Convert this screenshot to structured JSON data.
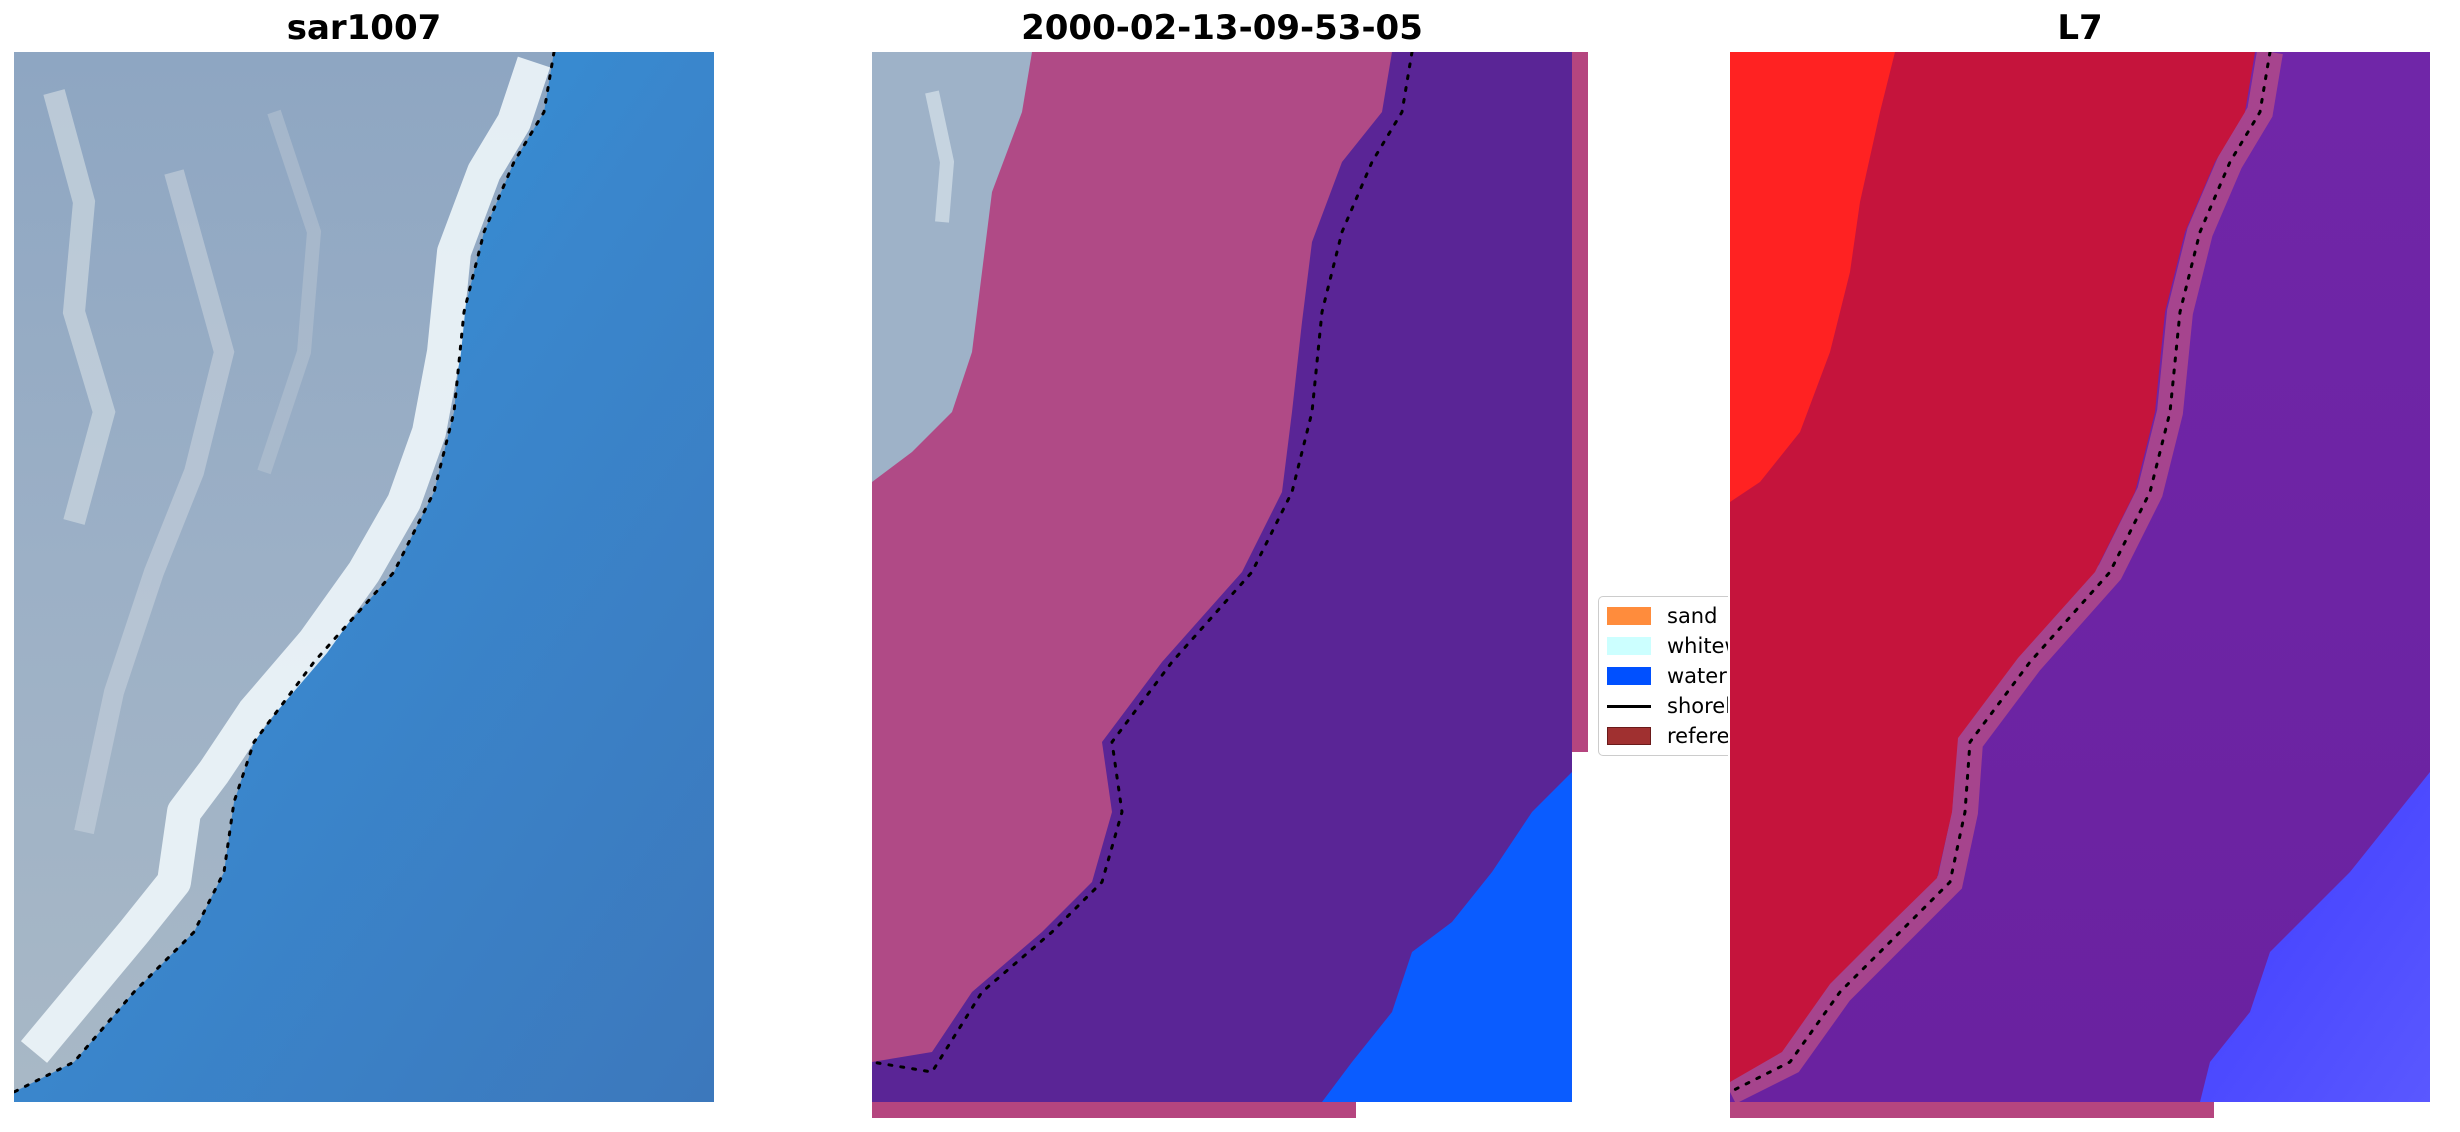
{
  "panels": [
    {
      "title": "sar1007"
    },
    {
      "title": "2000-02-13-09-53-05"
    },
    {
      "title": "L7"
    }
  ],
  "legend": {
    "items": [
      {
        "label": "sand",
        "color": "#ff8c3c"
      },
      {
        "label": "whitew",
        "color": "#ccffff"
      },
      {
        "label": "water",
        "color": "#0050ff"
      },
      {
        "label": "shorel",
        "color": "#000000"
      },
      {
        "label": "referer",
        "color": "#a03030"
      }
    ]
  },
  "colors": {
    "land_rgb": "#9aaec4",
    "whitewater_rgb": "#e8f2f6",
    "ocean_rgb": "#3a85cc",
    "class_land_overlay": "#b5457f",
    "class_water_overlay": "#5a2596",
    "class_water_pure": "#0a5cff",
    "l7_bright_red": "#ff2020",
    "l7_deep_red": "#c5103a",
    "l7_purple": "#7024a6",
    "l7_blue": "#4a48ff",
    "shoreline": "#000000"
  }
}
